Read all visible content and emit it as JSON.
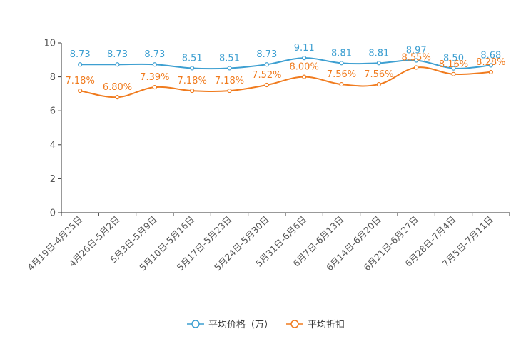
{
  "chart_data": {
    "type": "line",
    "categories": [
      "4月19日-4月25日",
      "4月26日-5月2日",
      "5月3日-5月9日",
      "5月10日-5月16日",
      "5月17日-5月23日",
      "5月24日-5月30日",
      "5月31日-6月6日",
      "6月7日-6月13日",
      "6月14日-6月20日",
      "6月21日-6月27日",
      "6月28日-7月4日",
      "7月5日-7月11日"
    ],
    "ylim": [
      0,
      10
    ],
    "yticks": [
      0,
      2,
      4,
      6,
      8,
      10
    ],
    "ytick_labels": [
      "0",
      "2",
      "4",
      "6",
      "8",
      "10"
    ],
    "series": [
      {
        "name": "平均价格（万）",
        "color": "#3d9fd1",
        "values": [
          8.73,
          8.73,
          8.73,
          8.51,
          8.51,
          8.73,
          9.11,
          8.81,
          8.81,
          8.97,
          8.5,
          8.68
        ],
        "labels": [
          "8.73",
          "8.73",
          "8.73",
          "8.51",
          "8.51",
          "8.73",
          "9.11",
          "8.81",
          "8.81",
          "8.97",
          "8.50",
          "8.68"
        ]
      },
      {
        "name": "平均折扣",
        "color": "#f07b1e",
        "values": [
          7.18,
          6.8,
          7.39,
          7.18,
          7.18,
          7.52,
          8.0,
          7.56,
          7.56,
          8.55,
          8.16,
          8.28
        ],
        "labels": [
          "7.18%",
          "6.80%",
          "7.39%",
          "7.18%",
          "7.18%",
          "7.52%",
          "8.00%",
          "7.56%",
          "7.56%",
          "8.55%",
          "8.16%",
          "8.28%"
        ]
      }
    ]
  }
}
